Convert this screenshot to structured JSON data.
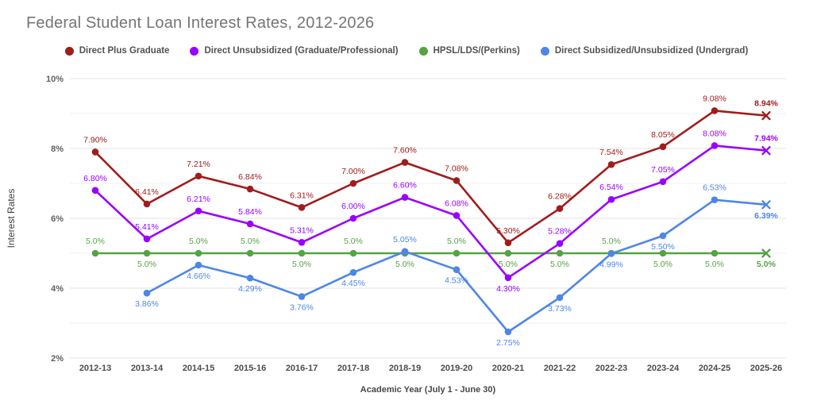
{
  "title": "Federal Student Loan Interest Rates, 2012-2026",
  "chart_data": {
    "type": "line",
    "title": "Federal Student Loan Interest Rates, 2012-2026",
    "xlabel": "Academic Year (July 1 - June 30)",
    "ylabel": "Interest Rates",
    "ylim": [
      2,
      10
    ],
    "grid": "horizontal",
    "legend_position": "top",
    "y_ticks": [
      {
        "value": 10,
        "label": "10%"
      },
      {
        "value": 8,
        "label": "8%"
      },
      {
        "value": 6,
        "label": "6%"
      },
      {
        "value": 4,
        "label": "4%"
      },
      {
        "value": 2,
        "label": "2%"
      }
    ],
    "y_minor_gridlines": [
      9,
      7,
      5,
      3
    ],
    "categories": [
      "2012-13",
      "2013-14",
      "2014-15",
      "2015-16",
      "2016-17",
      "2017-18",
      "2018-19",
      "2019-20",
      "2020-21",
      "2021-22",
      "2022-23",
      "2023-24",
      "2024-25",
      "2025-26"
    ],
    "series": [
      {
        "name": "Direct Plus Graduate",
        "color": "#a11c1c",
        "last_marker": "x",
        "values": [
          7.9,
          6.41,
          7.21,
          6.84,
          6.31,
          7.0,
          7.6,
          7.08,
          5.3,
          6.28,
          7.54,
          8.05,
          9.08,
          8.94
        ],
        "labels": [
          "7.90%",
          "6.41%",
          "7.21%",
          "6.84%",
          "6.31%",
          "7.00%",
          "7.60%",
          "7.08%",
          "5.30%",
          "6.28%",
          "7.54%",
          "8.05%",
          "9.08%",
          "8.94%"
        ],
        "label_pos": [
          "a",
          "a",
          "a",
          "a",
          "a",
          "a",
          "a",
          "a",
          "a",
          "a",
          "a",
          "a",
          "a",
          "a"
        ]
      },
      {
        "name": "Direct Unsubsidized (Graduate/Professional)",
        "color": "#9900ff",
        "last_marker": "x",
        "values": [
          6.8,
          5.41,
          6.21,
          5.84,
          5.31,
          6.0,
          6.6,
          6.08,
          4.3,
          5.28,
          6.54,
          7.05,
          8.08,
          7.94
        ],
        "labels": [
          "6.80%",
          "5.41%",
          "6.21%",
          "5.84%",
          "5.31%",
          "6.00%",
          "6.60%",
          "6.08%",
          "4.30%",
          "5.28%",
          "6.54%",
          "7.05%",
          "8.08%",
          "7.94%"
        ],
        "label_pos": [
          "a",
          "a",
          "a",
          "a",
          "a",
          "a",
          "a",
          "a",
          "b",
          "a",
          "a",
          "a",
          "a",
          "a"
        ]
      },
      {
        "name": "HPSL/LDS/(Perkins)",
        "color": "#55a344",
        "last_marker": "x",
        "values": [
          5.0,
          5.0,
          5.0,
          5.0,
          5.0,
          5.0,
          5.0,
          5.0,
          5.0,
          5.0,
          5.0,
          5.0,
          5.0,
          5.0
        ],
        "labels": [
          "5.0%",
          "5.0%",
          "5.0%",
          "5.0%",
          "5.0%",
          "5.0%",
          "5.0%",
          "5.0%",
          "5.0%",
          "5.0%",
          "5.0%",
          "5.0%",
          "5.0%",
          "5.0%"
        ],
        "label_pos": [
          "a",
          "b",
          "a",
          "a",
          "b",
          "a",
          "b",
          "a",
          "b",
          "b",
          "a",
          "b",
          "b",
          "b"
        ]
      },
      {
        "name": "Direct Subsidized/Unsubsidized (Undergrad)",
        "color": "#4d86e8",
        "last_marker": "x",
        "values": [
          null,
          3.86,
          4.66,
          4.29,
          3.76,
          4.45,
          5.05,
          4.53,
          2.75,
          3.73,
          4.99,
          5.5,
          6.53,
          6.39
        ],
        "labels": [
          null,
          "3.86%",
          "4.66%",
          "4.29%",
          "3.76%",
          "4.45%",
          "5.05%",
          "4.53%",
          "2.75%",
          "3.73%",
          "4.99%",
          "5.50%",
          "6.53%",
          "6.39%"
        ],
        "label_pos": [
          null,
          "b",
          "b",
          "b",
          "b",
          "b",
          "a",
          "b",
          "b",
          "b",
          "b",
          "b",
          "a",
          "b"
        ]
      }
    ]
  }
}
